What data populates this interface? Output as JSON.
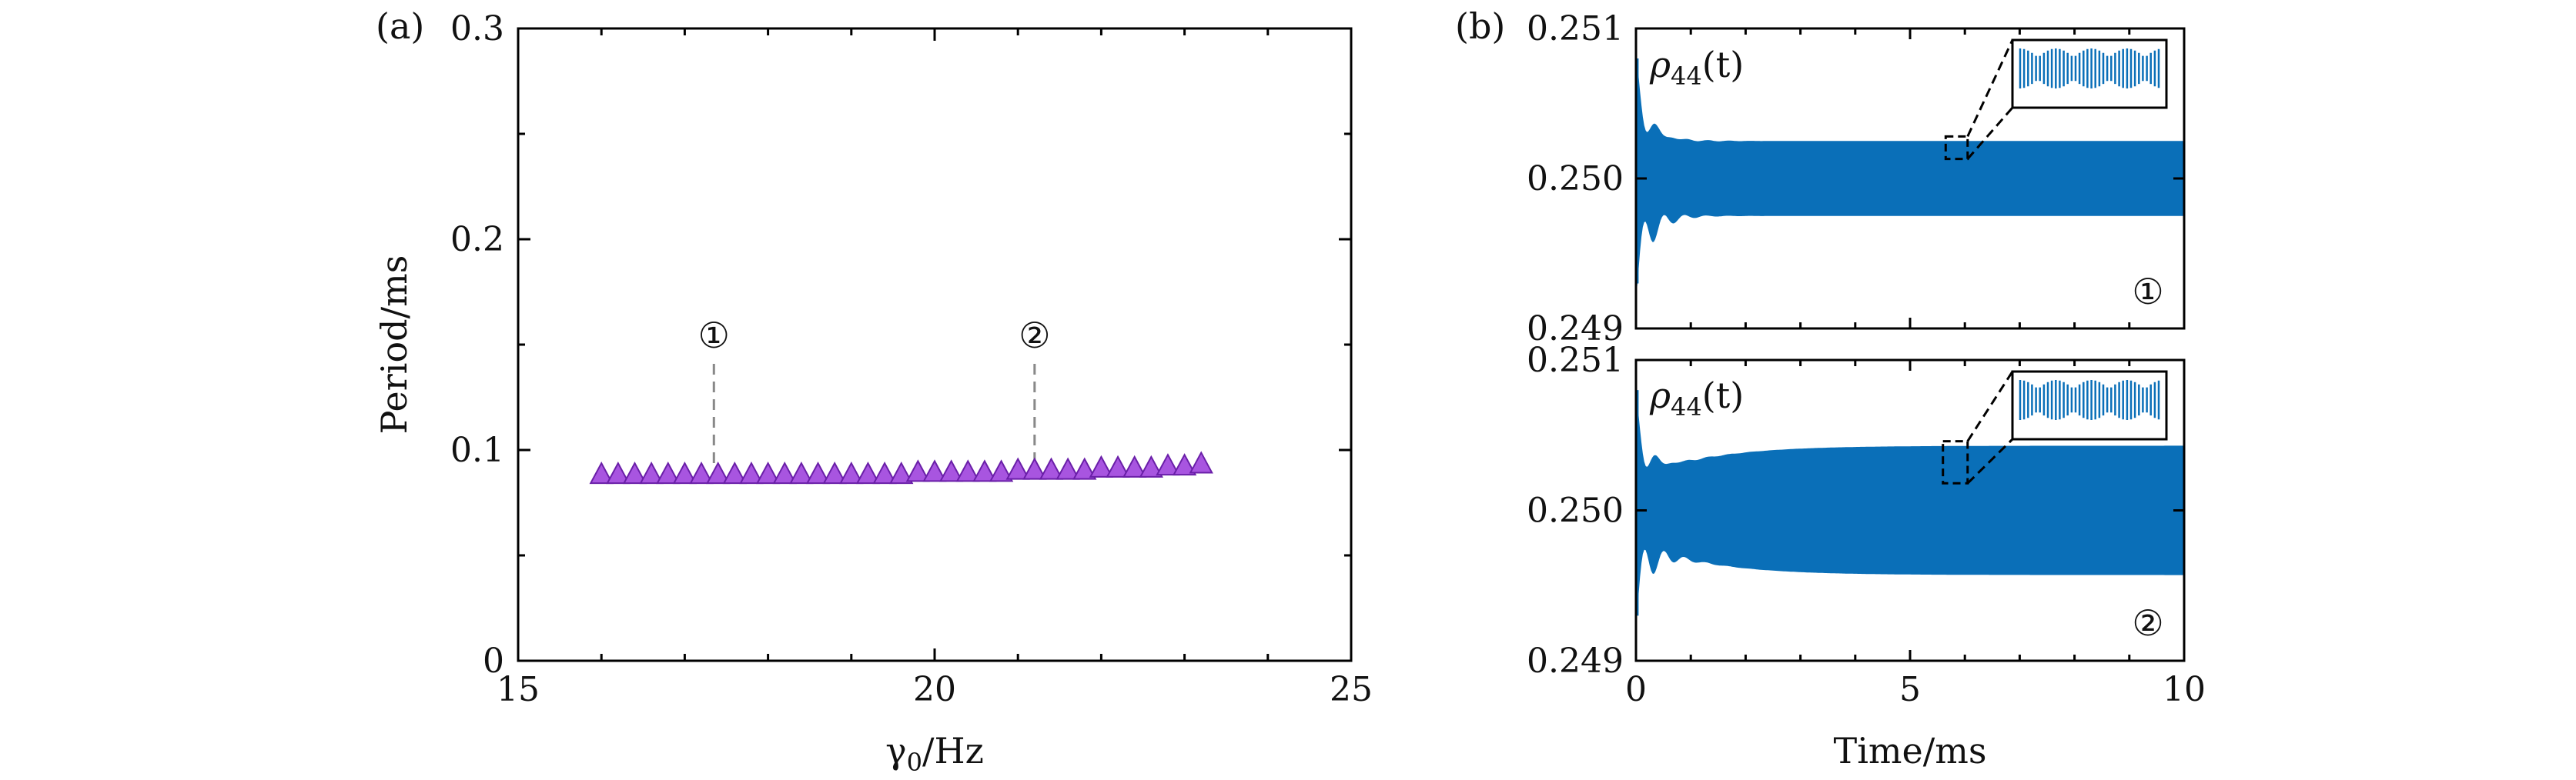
{
  "chart_data": [
    {
      "panel_label": "(a)",
      "type": "scatter",
      "xlabel_main": "γ",
      "xlabel_sub": "0",
      "xlabel_rest": "/Hz",
      "ylabel": "Period/ms",
      "xlim": [
        15,
        25
      ],
      "ylim": [
        0,
        0.3
      ],
      "xticks": [
        15,
        20,
        25
      ],
      "xtick_labels": [
        "15",
        "20",
        "25"
      ],
      "yticks": [
        0,
        0.1,
        0.2,
        0.3
      ],
      "ytick_labels": [
        "0",
        "0.1",
        "0.2",
        "0.3"
      ],
      "marker": "triangle",
      "marker_color": "#a855e0",
      "marker_edge": "#6a1fa8",
      "series": [
        {
          "x": [
            16.0,
            16.2,
            16.4,
            16.6,
            16.8,
            17.0,
            17.2,
            17.4,
            17.6,
            17.8,
            18.0,
            18.2,
            18.4,
            18.6,
            18.8,
            19.0,
            19.2,
            19.4,
            19.6,
            19.8,
            20.0,
            20.2,
            20.4,
            20.6,
            20.8,
            21.0,
            21.2,
            21.4,
            21.6,
            21.8,
            22.0,
            22.2,
            22.4,
            22.6,
            22.8,
            23.0,
            23.2
          ],
          "y": [
            0.089,
            0.089,
            0.089,
            0.089,
            0.089,
            0.089,
            0.089,
            0.089,
            0.089,
            0.089,
            0.089,
            0.089,
            0.089,
            0.089,
            0.089,
            0.089,
            0.089,
            0.089,
            0.089,
            0.09,
            0.09,
            0.09,
            0.09,
            0.09,
            0.09,
            0.091,
            0.091,
            0.091,
            0.091,
            0.091,
            0.092,
            0.092,
            0.092,
            0.092,
            0.093,
            0.093,
            0.094
          ]
        }
      ],
      "annotations": [
        {
          "label": "①",
          "x": 17.35
        },
        {
          "label": "②",
          "x": 21.2
        }
      ]
    },
    {
      "panel_label": "(b)",
      "type": "line",
      "xlabel": "Time/ms",
      "xlim": [
        0,
        10
      ],
      "xticks": [
        0,
        5,
        10
      ],
      "xtick_labels": [
        "0",
        "5",
        "10"
      ],
      "series_color": "#0a6fb8",
      "subplots": [
        {
          "ylabel_main": "ρ",
          "ylabel_sub": "44",
          "ylabel_rest": "(t)",
          "ylim": [
            0.249,
            0.251
          ],
          "yticks": [
            0.249,
            0.25,
            0.251
          ],
          "ytick_labels": [
            "0.249",
            "0.250",
            "0.251"
          ],
          "marker_label": "①",
          "steady_mean": 0.25,
          "steady_amplitude": 0.00025,
          "zoom_box_x": [
            5.65,
            6.05
          ]
        },
        {
          "ylabel_main": "ρ",
          "ylabel_sub": "44",
          "ylabel_rest": "(t)",
          "ylim": [
            0.249,
            0.251
          ],
          "yticks": [
            0.249,
            0.25,
            0.251
          ],
          "ytick_labels": [
            "0.249",
            "0.250",
            "0.251"
          ],
          "marker_label": "②",
          "steady_mean": 0.25,
          "steady_amplitude": 0.00043,
          "zoom_box_x": [
            5.6,
            6.05
          ]
        }
      ]
    }
  ]
}
